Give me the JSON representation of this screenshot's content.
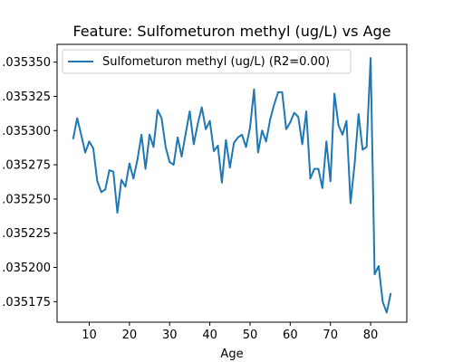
{
  "chart_data": {
    "type": "line",
    "title": "Feature: Sulfometuron methyl (ug/L) vs Age",
    "xlabel": "Age",
    "ylabel": "",
    "xlim": [
      2,
      89
    ],
    "ylim": [
      0.03516,
      0.035363
    ],
    "x_ticks": [
      10,
      20,
      30,
      40,
      50,
      60,
      70,
      80
    ],
    "x_tick_labels": [
      "10",
      "20",
      "30",
      "40",
      "50",
      "60",
      "70",
      "80"
    ],
    "y_ticks": [
      0.035175,
      0.0352,
      0.035225,
      0.03525,
      0.035275,
      0.0353,
      0.035325,
      0.03535
    ],
    "y_tick_labels": [
      ".035175",
      ".035200",
      ".035225",
      ".035250",
      ".035275",
      ".035300",
      ".035325",
      ".035350"
    ],
    "legend": {
      "position": "upper-left"
    },
    "grid": false,
    "series": [
      {
        "name": "Sulfometuron methyl (ug/L) (R2=0.00)",
        "color": "#1f77b4",
        "x": [
          6,
          7,
          8,
          9,
          10,
          11,
          12,
          13,
          14,
          15,
          16,
          17,
          18,
          19,
          20,
          21,
          22,
          23,
          24,
          25,
          26,
          27,
          28,
          29,
          30,
          31,
          32,
          33,
          34,
          35,
          36,
          37,
          38,
          39,
          40,
          41,
          42,
          43,
          44,
          45,
          46,
          47,
          48,
          49,
          50,
          51,
          52,
          53,
          54,
          55,
          56,
          57,
          58,
          59,
          60,
          61,
          62,
          63,
          64,
          65,
          66,
          67,
          68,
          69,
          70,
          71,
          72,
          73,
          74,
          75,
          76,
          77,
          78,
          79,
          80,
          81,
          82,
          83,
          84,
          85
        ],
        "y": [
          0.035294,
          0.035309,
          0.035297,
          0.035284,
          0.035292,
          0.035287,
          0.035263,
          0.035255,
          0.035257,
          0.035271,
          0.03527,
          0.03524,
          0.035264,
          0.035259,
          0.035276,
          0.035265,
          0.035279,
          0.035297,
          0.035272,
          0.035297,
          0.035288,
          0.035315,
          0.035309,
          0.035288,
          0.035277,
          0.035275,
          0.035295,
          0.035281,
          0.035298,
          0.035314,
          0.03529,
          0.035305,
          0.035317,
          0.035301,
          0.035307,
          0.035285,
          0.035289,
          0.035262,
          0.035293,
          0.035273,
          0.035291,
          0.035295,
          0.035297,
          0.035288,
          0.035302,
          0.03533,
          0.035284,
          0.0353,
          0.035292,
          0.035308,
          0.035319,
          0.035328,
          0.035328,
          0.035301,
          0.035306,
          0.035313,
          0.03531,
          0.03529,
          0.035314,
          0.035265,
          0.035272,
          0.035272,
          0.035258,
          0.035292,
          0.035263,
          0.035327,
          0.035304,
          0.035297,
          0.035307,
          0.035247,
          0.035275,
          0.035312,
          0.035286,
          0.035288,
          0.035353,
          0.035195,
          0.035201,
          0.035175,
          0.035167,
          0.035181
        ]
      }
    ]
  }
}
